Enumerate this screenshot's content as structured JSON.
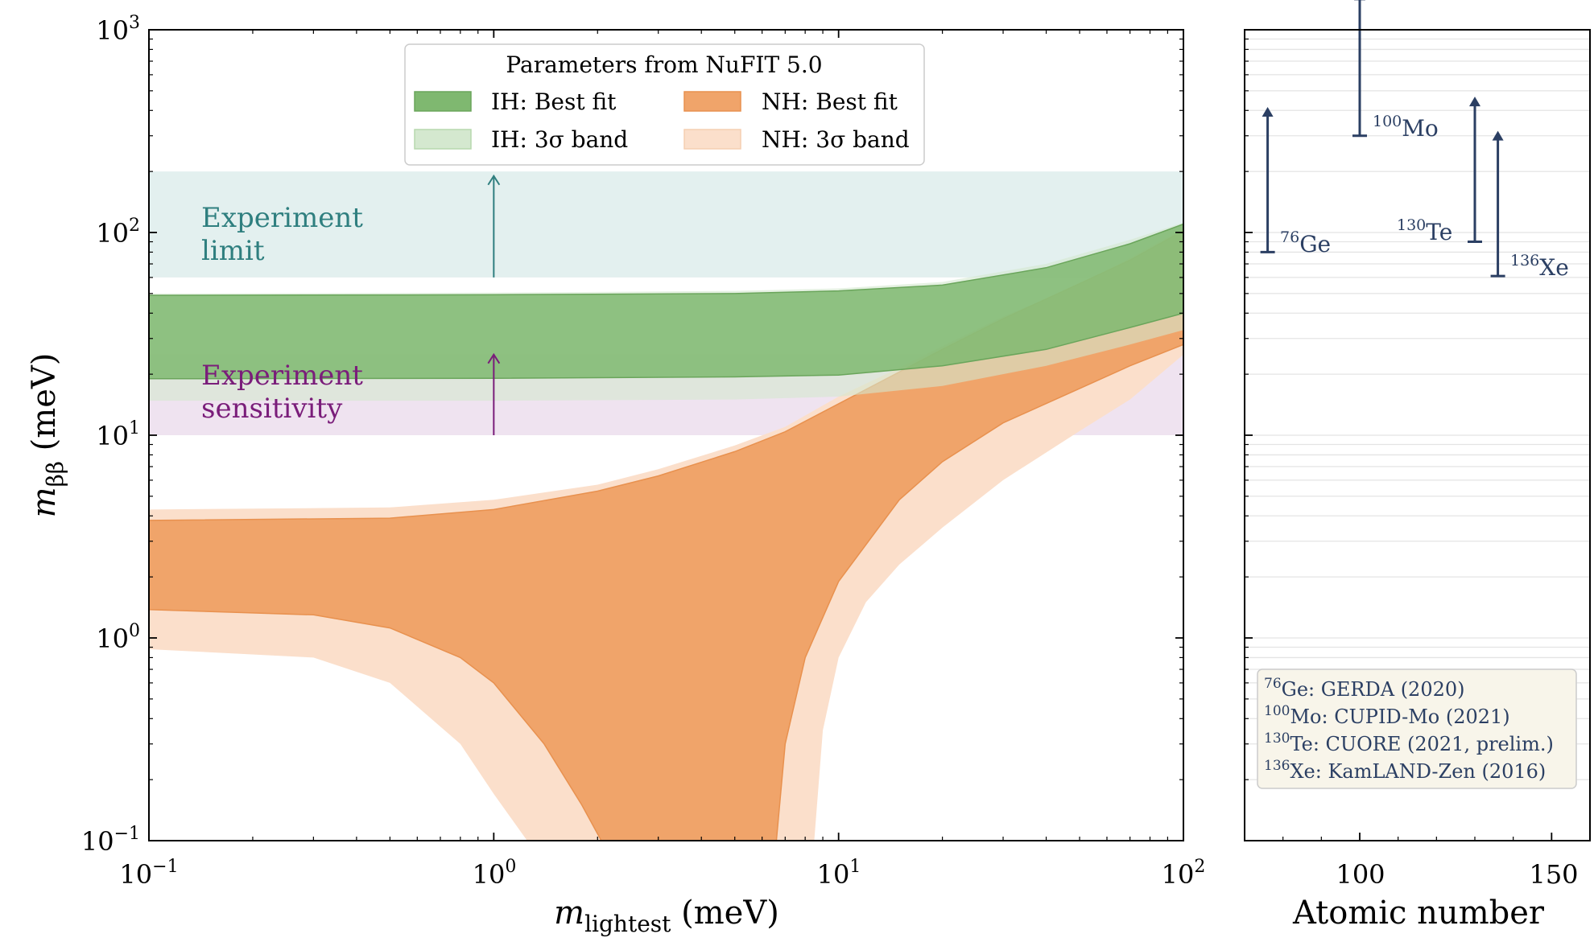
{
  "colors": {
    "ih_best": "#7fb870",
    "ih_band": "#d4e8cf",
    "nh_best": "#f0a46a",
    "nh_band": "#fbdfcb",
    "limit": "#2f7f7f",
    "limit_fill": "#e3f0ef",
    "sens": "#7a1d7a",
    "sens_fill": "#efe3f0",
    "arrow": "#2b3f63"
  },
  "chart_data": [
    {
      "type": "area",
      "xscale": "log",
      "yscale": "log",
      "xlim": [
        0.1,
        100
      ],
      "ylim": [
        0.1,
        1000
      ],
      "xlabel_main": "m",
      "xlabel_sub": "lightest",
      "xlabel_unit": " (meV)",
      "ylabel_main": "m",
      "ylabel_sub": "ββ",
      "ylabel_unit": " (meV)",
      "xticks": [
        {
          "value": 0.1,
          "base": "10",
          "exp": "−1"
        },
        {
          "value": 1,
          "base": "10",
          "exp": "0"
        },
        {
          "value": 10,
          "base": "10",
          "exp": "1"
        },
        {
          "value": 100,
          "base": "10",
          "exp": "2"
        }
      ],
      "yticks": [
        {
          "value": 0.1,
          "base": "10",
          "exp": "−1"
        },
        {
          "value": 1,
          "base": "10",
          "exp": "0"
        },
        {
          "value": 10,
          "base": "10",
          "exp": "1"
        },
        {
          "value": 100,
          "base": "10",
          "exp": "2"
        },
        {
          "value": 1000,
          "base": "10",
          "exp": "3"
        }
      ],
      "legend": {
        "title": "Parameters from NuFIT 5.0",
        "position": "top-center",
        "entries": [
          {
            "key": "ih_best",
            "label": "IH: Best fit"
          },
          {
            "key": "nh_best",
            "label": "NH: Best fit"
          },
          {
            "key": "ih_band",
            "label": "IH: 3σ band"
          },
          {
            "key": "nh_band",
            "label": "NH: 3σ band"
          }
        ]
      },
      "regions": {
        "experiment_limit": {
          "y_range": [
            60,
            200
          ],
          "line1": "Experiment",
          "line2": "limit",
          "arrow_x": 1,
          "arrow_from": 60,
          "arrow_to": 190
        },
        "experiment_sensitivity": {
          "y_range": [
            10,
            25
          ],
          "line1": "Experiment",
          "line2": "sensitivity",
          "arrow_x": 1,
          "arrow_from": 10,
          "arrow_to": 25
        }
      },
      "series": [
        {
          "name": "IH: 3σ band",
          "key": "ih_band",
          "upper": [
            [
              0.1,
              50
            ],
            [
              1,
              50.5
            ],
            [
              5,
              51.5
            ],
            [
              10,
              53
            ],
            [
              20,
              57
            ],
            [
              40,
              70
            ],
            [
              70,
              92
            ],
            [
              100,
              112
            ]
          ],
          "lower": [
            [
              0.1,
              14.8
            ],
            [
              1,
              14.8
            ],
            [
              5,
              15.0
            ],
            [
              10,
              15.5
            ],
            [
              20,
              17.5
            ],
            [
              40,
              22
            ],
            [
              70,
              28
            ],
            [
              100,
              33
            ]
          ]
        },
        {
          "name": "IH: Best fit",
          "key": "ih_best",
          "upper": [
            [
              0.1,
              49
            ],
            [
              1,
              49.3
            ],
            [
              5,
              50
            ],
            [
              10,
              51.5
            ],
            [
              20,
              55
            ],
            [
              40,
              67
            ],
            [
              70,
              88
            ],
            [
              100,
              110
            ]
          ],
          "lower": [
            [
              0.1,
              19
            ],
            [
              1,
              19.1
            ],
            [
              5,
              19.4
            ],
            [
              10,
              19.8
            ],
            [
              20,
              22
            ],
            [
              40,
              26.5
            ],
            [
              70,
              34
            ],
            [
              100,
              40
            ]
          ]
        },
        {
          "name": "NH: 3σ band",
          "key": "nh_band",
          "upper": [
            [
              0.1,
              4.3
            ],
            [
              0.5,
              4.4
            ],
            [
              1,
              4.8
            ],
            [
              2,
              5.7
            ],
            [
              3,
              6.8
            ],
            [
              5,
              8.9
            ],
            [
              7,
              11
            ],
            [
              10,
              15.5
            ],
            [
              15,
              21.5
            ],
            [
              20,
              27.5
            ],
            [
              30,
              38.5
            ],
            [
              50,
              55
            ],
            [
              70,
              75
            ],
            [
              100,
              105
            ]
          ],
          "lower": [
            [
              0.1,
              0.88
            ],
            [
              0.3,
              0.8
            ],
            [
              0.5,
              0.6
            ],
            [
              0.8,
              0.3
            ],
            [
              1.0,
              0.17
            ],
            [
              1.25,
              0.1
            ],
            [
              8.5,
              0.1
            ],
            [
              9,
              0.35
            ],
            [
              10,
              0.8
            ],
            [
              12,
              1.5
            ],
            [
              15,
              2.3
            ],
            [
              20,
              3.5
            ],
            [
              30,
              6
            ],
            [
              50,
              10.5
            ],
            [
              70,
              15
            ],
            [
              100,
              25
            ]
          ]
        },
        {
          "name": "NH: Best fit",
          "key": "nh_best",
          "upper": [
            [
              0.1,
              3.8
            ],
            [
              0.5,
              3.9
            ],
            [
              1,
              4.3
            ],
            [
              2,
              5.3
            ],
            [
              3,
              6.3
            ],
            [
              5,
              8.3
            ],
            [
              7,
              10.4
            ],
            [
              10,
              14.3
            ],
            [
              15,
              20.5
            ],
            [
              20,
              26.5
            ],
            [
              30,
              37.5
            ],
            [
              50,
              56
            ],
            [
              70,
              73
            ],
            [
              100,
              102
            ]
          ],
          "lower": [
            [
              0.1,
              1.38
            ],
            [
              0.3,
              1.3
            ],
            [
              0.5,
              1.12
            ],
            [
              0.8,
              0.8
            ],
            [
              1,
              0.6
            ],
            [
              1.4,
              0.3
            ],
            [
              1.8,
              0.15
            ],
            [
              2.05,
              0.1
            ],
            [
              6.6,
              0.1
            ],
            [
              7,
              0.3
            ],
            [
              8,
              0.8
            ],
            [
              10,
              1.9
            ],
            [
              15,
              4.8
            ],
            [
              20,
              7.4
            ],
            [
              30,
              11.5
            ],
            [
              50,
              17
            ],
            [
              70,
              22
            ],
            [
              100,
              28
            ]
          ]
        }
      ]
    },
    {
      "type": "scatter",
      "xlabel": "Atomic number",
      "xlim": [
        70,
        160
      ],
      "ylim": [
        0.1,
        1000
      ],
      "yscale": "log",
      "xticks": [
        100,
        150
      ],
      "points": [
        {
          "Z": 76,
          "isotope": "Ge",
          "mass_number": "76",
          "label_side": "right",
          "limit": 80
        },
        {
          "Z": 100,
          "isotope": "Mo",
          "mass_number": "100",
          "label_side": "right",
          "limit": 300
        },
        {
          "Z": 130,
          "isotope": "Te",
          "mass_number": "130",
          "label_side": "left",
          "limit": 90
        },
        {
          "Z": 136,
          "isotope": "Xe",
          "mass_number": "136",
          "label_side": "right",
          "limit": 61
        }
      ],
      "legend": {
        "position": "bottom-right",
        "entries": [
          {
            "mass_number": "76",
            "isotope": "Ge",
            "text": ": GERDA (2020)"
          },
          {
            "mass_number": "100",
            "isotope": "Mo",
            "text": ": CUPID-Mo (2021)"
          },
          {
            "mass_number": "130",
            "isotope": "Te",
            "text": ": CUORE (2021, prelim.)"
          },
          {
            "mass_number": "136",
            "isotope": "Xe",
            "text": ": KamLAND-Zen (2016)"
          }
        ]
      }
    }
  ]
}
